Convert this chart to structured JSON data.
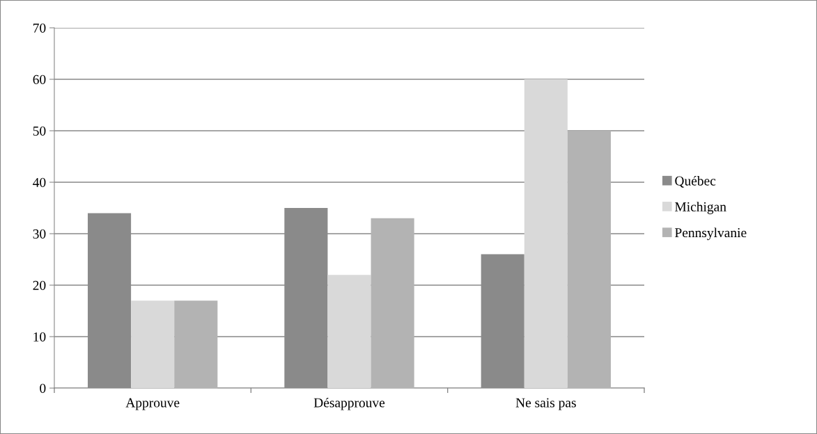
{
  "chart_data": {
    "type": "bar",
    "categories": [
      "Approuve",
      "Désapprouve",
      "Ne sais pas"
    ],
    "series": [
      {
        "name": "Québec",
        "color": "#8a8a8a",
        "values": [
          34,
          35,
          26
        ]
      },
      {
        "name": "Michigan",
        "color": "#d9d9d9",
        "values": [
          17,
          22,
          60
        ]
      },
      {
        "name": "Pennsylvanie",
        "color": "#b3b3b3",
        "values": [
          17,
          33,
          50
        ]
      }
    ],
    "ylim": [
      0,
      70
    ],
    "yticks": [
      0,
      10,
      20,
      30,
      40,
      50,
      60,
      70
    ],
    "grid": "y",
    "legend": "right"
  }
}
